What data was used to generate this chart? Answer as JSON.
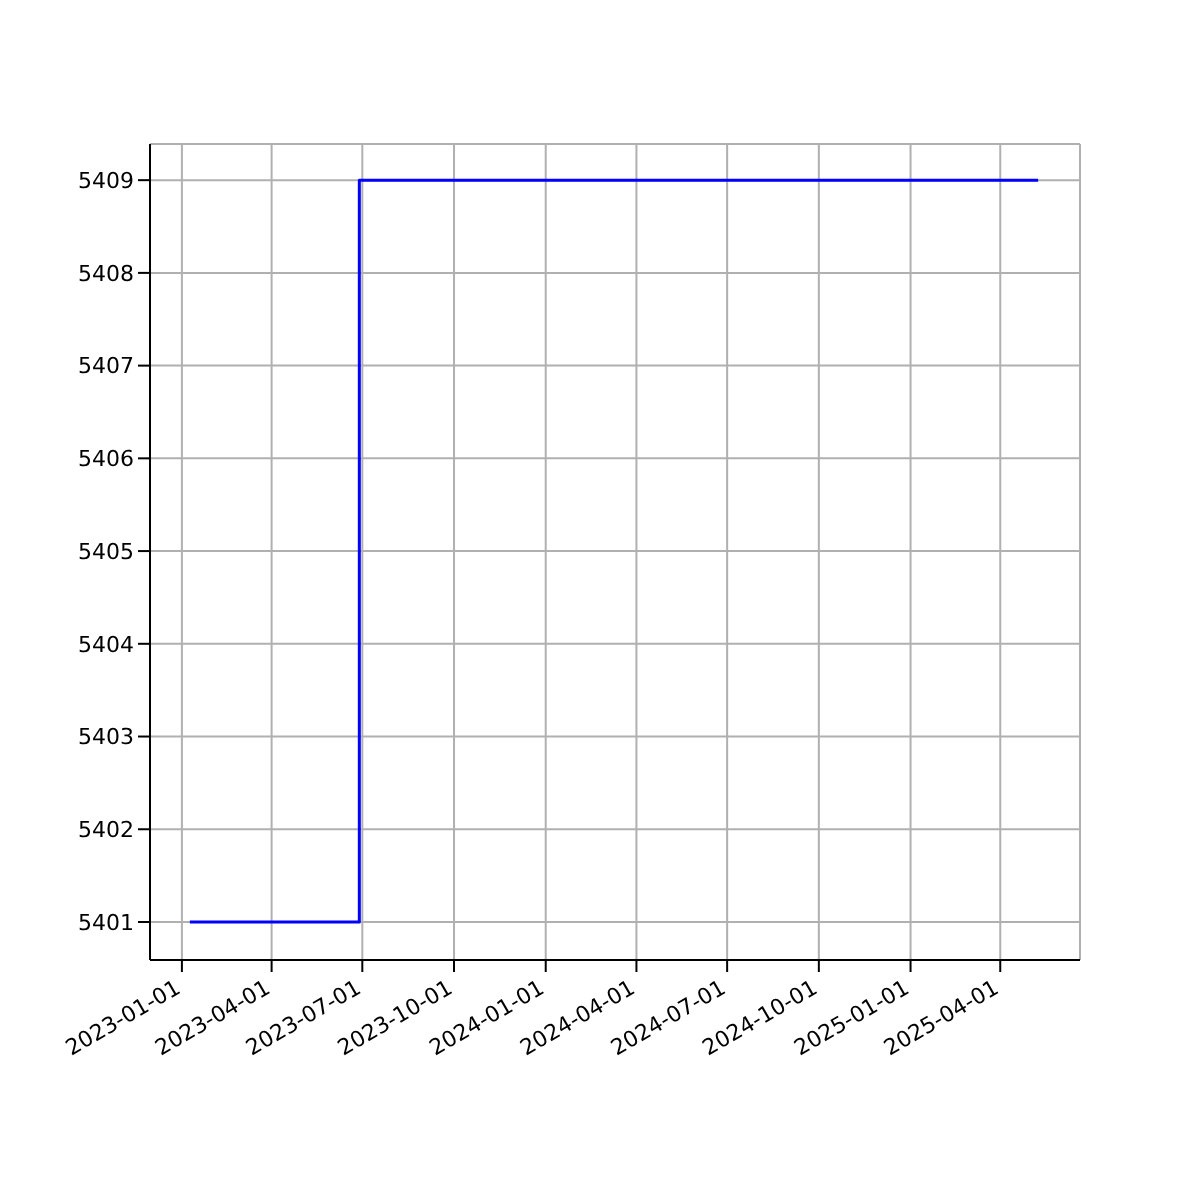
{
  "chart_data": {
    "type": "step",
    "x": [
      "2023-01-09",
      "2023-06-28",
      "2025-05-09"
    ],
    "series": [
      {
        "color": "#0000ff",
        "values": [
          5401,
          5409,
          5409
        ]
      }
    ],
    "xlim": [
      "2022-11-30",
      "2025-06-20"
    ],
    "xticks": [
      "2023-01-01",
      "2023-04-01",
      "2023-07-01",
      "2023-10-01",
      "2024-01-01",
      "2024-04-01",
      "2024-07-01",
      "2024-10-01",
      "2025-01-01",
      "2025-04-01"
    ],
    "ylim": [
      5400.59,
      5409.39
    ],
    "yticks": [
      5401,
      5402,
      5403,
      5404,
      5405,
      5406,
      5407,
      5408,
      5409
    ],
    "grid": true,
    "marker": "none",
    "line_style": "solid"
  }
}
